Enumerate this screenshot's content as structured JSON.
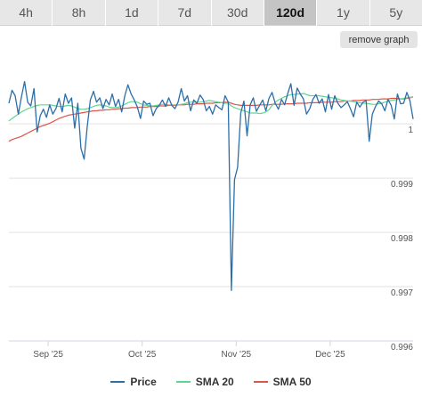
{
  "tabs": [
    {
      "label": "4h",
      "active": false
    },
    {
      "label": "8h",
      "active": false
    },
    {
      "label": "1d",
      "active": false
    },
    {
      "label": "7d",
      "active": false
    },
    {
      "label": "30d",
      "active": false
    },
    {
      "label": "120d",
      "active": true
    },
    {
      "label": "1y",
      "active": false
    },
    {
      "label": "5y",
      "active": false
    }
  ],
  "remove_graph_label": "remove graph",
  "colors": {
    "price": "#2b6ea8",
    "sma20": "#5fd690",
    "sma50": "#e0534a"
  },
  "chart_data": {
    "type": "line",
    "x_ticks": [
      "Sep '25",
      "Oct '25",
      "Nov '25",
      "Dec '25"
    ],
    "y_ticks": [
      "1",
      "0.999",
      "0.998",
      "0.997",
      "0.996"
    ],
    "ylim": [
      0.996,
      1.0012
    ],
    "grid": true,
    "legend_position": "bottom",
    "series": [
      {
        "name": "Price",
        "values": [
          1.00038,
          1.00062,
          1.00052,
          1.00018,
          1.0005,
          1.00078,
          1.0004,
          1.00033,
          1.00065,
          0.99985,
          1.00015,
          1.00027,
          1.00012,
          1.00035,
          1.00018,
          1.00028,
          1.00047,
          1.00022,
          1.00055,
          1.00038,
          1.00048,
          0.99992,
          1.00038,
          0.99955,
          0.99935,
          0.99995,
          1.00044,
          1.0006,
          1.0004,
          1.00048,
          1.00028,
          1.00045,
          1.00035,
          1.00055,
          1.00032,
          1.00045,
          1.00022,
          1.00052,
          1.00072,
          1.00055,
          1.00044,
          1.00031,
          1.0001,
          1.00042,
          1.00036,
          1.00038,
          1.00015,
          1.00028,
          1.00034,
          1.00044,
          1.00032,
          1.00048,
          1.00034,
          1.00028,
          1.0004,
          1.00065,
          1.00042,
          1.00052,
          1.00024,
          1.00044,
          1.00038,
          1.00053,
          1.00045,
          1.00024,
          1.00032,
          1.00018,
          1.00035,
          1.0003,
          1.00026,
          1.00052,
          1.0004,
          0.99693,
          0.99897,
          0.9992,
          1.0002,
          1.00042,
          0.99978,
          1.00035,
          1.00048,
          1.00023,
          1.00034,
          1.00044,
          1.00024,
          1.00047,
          1.00058,
          1.00038,
          1.00027,
          1.00045,
          1.00035,
          1.00056,
          1.00074,
          1.00034,
          1.00066,
          1.00055,
          1.00046,
          1.00018,
          1.00028,
          1.00045,
          1.00054,
          1.00038,
          1.00046,
          1.00022,
          1.00054,
          1.00027,
          1.00052,
          1.00038,
          1.0003,
          1.00035,
          1.00041,
          1.00028,
          1.00013,
          1.0004,
          1.00031,
          1.0004,
          1.00043,
          0.99968,
          1.00018,
          1.00032,
          1.00042,
          1.00037,
          1.00024,
          1.00045,
          1.00034,
          1.00009,
          1.00055,
          1.00037,
          1.00038,
          1.00058,
          1.00042,
          1.00009
        ]
      },
      {
        "name": "SMA 20",
        "values": [
          1.00005,
          1.0001,
          1.00014,
          1.00018,
          1.00022,
          1.00025,
          1.00028,
          1.0003,
          1.00032,
          1.00034,
          1.00035,
          1.00035,
          1.00035,
          1.00035,
          1.00034,
          1.00033,
          1.00032,
          1.00032,
          1.00033,
          1.00034,
          1.00033,
          1.00031,
          1.00028,
          1.00027,
          1.00027,
          1.00028,
          1.0003,
          1.00032,
          1.00034,
          1.00035,
          1.00034,
          1.00033,
          1.00031,
          1.0003,
          1.0003,
          1.00031,
          1.00033,
          1.00036,
          1.00039,
          1.00041,
          1.00041,
          1.0004,
          1.00037,
          1.00035,
          1.00034,
          1.00033,
          1.00033,
          1.00034,
          1.00035,
          1.00036,
          1.00036,
          1.00035,
          1.00035,
          1.00035,
          1.00035,
          1.00036,
          1.00037,
          1.00039,
          1.0004,
          1.0004,
          1.0004,
          1.0004,
          1.00041,
          1.00042,
          1.00043,
          1.00042,
          1.00041,
          1.0004,
          1.00039,
          1.00038,
          1.00038,
          1.00033,
          1.0003,
          1.00028,
          1.00026,
          1.00024,
          1.00022,
          1.0002,
          1.0002,
          1.0002,
          1.00019,
          1.0002,
          1.00022,
          1.00026,
          1.00034,
          1.0004,
          1.00044,
          1.00047,
          1.0005,
          1.00052,
          1.00054,
          1.00054,
          1.00055,
          1.00055,
          1.00056,
          1.00054,
          1.00052,
          1.00052,
          1.00052,
          1.00052,
          1.00051,
          1.0005,
          1.00049,
          1.00048,
          1.00047,
          1.00046,
          1.00044,
          1.00043,
          1.00042,
          1.00042,
          1.00041,
          1.0004,
          1.00039,
          1.00038,
          1.00038,
          1.00037,
          1.00036,
          1.00036,
          1.00037,
          1.00038,
          1.0004,
          1.00042,
          1.00043,
          1.00044,
          1.00045,
          1.00046,
          1.00047,
          1.00048,
          1.00049,
          1.00049
        ]
      },
      {
        "name": "SMA 50",
        "values": [
          0.99968,
          0.99971,
          0.99973,
          0.99975,
          0.99977,
          0.9998,
          0.99983,
          0.99986,
          0.99989,
          0.99992,
          0.99995,
          0.99997,
          0.99999,
          1.00001,
          1.00004,
          1.00007,
          1.0001,
          1.00012,
          1.00014,
          1.00016,
          1.00017,
          1.00018,
          1.00019,
          1.0002,
          1.00021,
          1.00022,
          1.00023,
          1.00024,
          1.00024,
          1.00025,
          1.00025,
          1.00026,
          1.00026,
          1.00027,
          1.00027,
          1.00028,
          1.00028,
          1.00029,
          1.00029,
          1.0003,
          1.0003,
          1.0003,
          1.00031,
          1.00031,
          1.00031,
          1.00032,
          1.00032,
          1.00032,
          1.00033,
          1.00033,
          1.00033,
          1.00034,
          1.00034,
          1.00034,
          1.00035,
          1.00035,
          1.00035,
          1.00036,
          1.00036,
          1.00036,
          1.00037,
          1.00037,
          1.00037,
          1.00038,
          1.00038,
          1.00038,
          1.00039,
          1.00039,
          1.00039,
          1.0004,
          1.0004,
          1.00038,
          1.00036,
          1.00035,
          1.00034,
          1.00034,
          1.00034,
          1.00034,
          1.00034,
          1.00034,
          1.00035,
          1.00035,
          1.00035,
          1.00035,
          1.00036,
          1.00036,
          1.00036,
          1.00036,
          1.00037,
          1.00037,
          1.00037,
          1.00037,
          1.00038,
          1.00038,
          1.00038,
          1.00038,
          1.00039,
          1.00039,
          1.00039,
          1.00039,
          1.0004,
          1.0004,
          1.0004,
          1.0004,
          1.00041,
          1.00041,
          1.00041,
          1.00042,
          1.00042,
          1.00042,
          1.00043,
          1.00043,
          1.00043,
          1.00044,
          1.00044,
          1.00044,
          1.00045,
          1.00045,
          1.00045,
          1.00046,
          1.00046,
          1.00046,
          1.00047,
          1.00047,
          1.00047,
          1.00046,
          1.00046,
          1.00047,
          1.00048,
          1.0005
        ]
      }
    ]
  }
}
